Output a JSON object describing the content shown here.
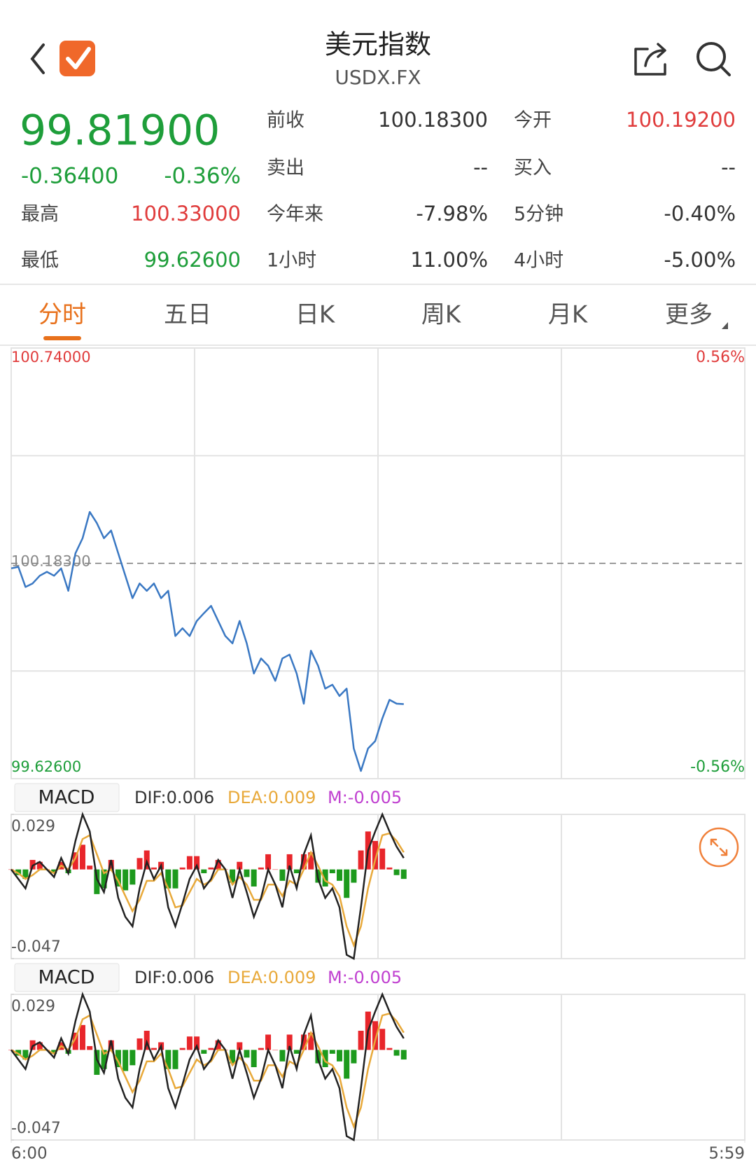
{
  "header": {
    "title": "美元指数",
    "symbol": "USDX.FX"
  },
  "quote": {
    "price": "99.81900",
    "change": "-0.36400",
    "change_pct": "-0.36%",
    "color": "#1e9e3a",
    "stats": [
      [
        {
          "label": "前收",
          "value": "100.18300"
        },
        {
          "label": "今开",
          "value": "100.19200",
          "color": "#e03c3c"
        }
      ],
      [
        {
          "label": "卖出",
          "value": "--"
        },
        {
          "label": "买入",
          "value": "--"
        }
      ],
      [
        {
          "label": "最高",
          "value": "100.33000",
          "color": "#e03c3c"
        },
        {
          "label": "今年来",
          "value": "-7.98%"
        },
        {
          "label": "5分钟",
          "value": "-0.40%"
        }
      ],
      [
        {
          "label": "最低",
          "value": "99.62600",
          "color": "#1e9e3a"
        },
        {
          "label": "1小时",
          "value": "11.00%"
        },
        {
          "label": "4小时",
          "value": "-5.00%"
        }
      ]
    ]
  },
  "tabs": {
    "items": [
      "分时",
      "五日",
      "日K",
      "周K",
      "月K",
      "更多"
    ],
    "active": 0
  },
  "chart_data": [
    {
      "type": "line",
      "color": "#3a78c3",
      "x": [
        0,
        14,
        28,
        42,
        56,
        70,
        84,
        98,
        112,
        126,
        140,
        154,
        168,
        182,
        196,
        210,
        224,
        238,
        252,
        266,
        280,
        294,
        308,
        322,
        336,
        350,
        364,
        378,
        392,
        406,
        420,
        434,
        448,
        462,
        476,
        490,
        504,
        518,
        532,
        546,
        560,
        574,
        588,
        602,
        616,
        630,
        644,
        658,
        672,
        686,
        700,
        714,
        728,
        742,
        756,
        770
      ],
      "values": [
        100.17,
        100.174,
        100.122,
        100.131,
        100.151,
        100.161,
        100.151,
        100.17,
        100.112,
        100.209,
        100.248,
        100.316,
        100.287,
        100.248,
        100.268,
        100.209,
        100.151,
        100.093,
        100.131,
        100.112,
        100.131,
        100.093,
        100.112,
        99.995,
        100.015,
        99.995,
        100.034,
        100.054,
        100.073,
        100.034,
        99.995,
        99.976,
        100.034,
        99.976,
        99.898,
        99.937,
        99.918,
        99.879,
        99.937,
        99.947,
        99.898,
        99.82,
        99.957,
        99.918,
        99.859,
        99.869,
        99.84,
        99.859,
        99.704,
        99.646,
        99.704,
        99.723,
        99.782,
        99.83,
        99.82,
        99.819
      ],
      "xlim": [
        0,
        1439
      ],
      "xticks": [
        {
          "value": 0,
          "label": "6:00"
        },
        {
          "value": 1439,
          "label": "5:59"
        }
      ],
      "ylim": [
        99.626,
        100.74
      ],
      "yticks": [
        {
          "value": 99.626,
          "label": "99.62600"
        },
        {
          "value": 100.74,
          "label": "100.74000"
        }
      ],
      "y2lim": [
        -0.56,
        0.56
      ],
      "y2ticks": [
        {
          "value": -0.56,
          "label": "-0.56%"
        },
        {
          "value": 0.56,
          "label": "0.56%"
        }
      ],
      "reference": {
        "value": 100.183,
        "label": "100.18300"
      },
      "up_color": "#e03c3c",
      "down_color": "#1e9e3a"
    },
    {
      "type": "macd",
      "title": "MACD",
      "dif_label": "DIF:0.006",
      "dea_label": "DEA:0.009",
      "m_label": "M:-0.005",
      "ylim": [
        -0.047,
        0.029
      ],
      "yticks": [
        -0.047,
        0.029
      ],
      "dif": {
        "color": "#222222",
        "values": [
          0.0,
          -0.005,
          -0.01,
          0.002,
          0.004,
          0.0,
          -0.004,
          0.006,
          -0.002,
          0.015,
          0.029,
          0.02,
          -0.005,
          -0.012,
          0.005,
          -0.015,
          -0.025,
          -0.03,
          -0.01,
          0.004,
          -0.005,
          0.002,
          -0.02,
          -0.03,
          -0.018,
          -0.005,
          0.002,
          -0.01,
          -0.005,
          0.005,
          0.0,
          -0.015,
          0.0,
          -0.012,
          -0.025,
          -0.015,
          0.0,
          -0.008,
          -0.02,
          0.002,
          -0.01,
          0.008,
          0.018,
          -0.005,
          -0.015,
          -0.01,
          -0.02,
          -0.045,
          -0.047,
          -0.02,
          0.01,
          0.02,
          0.029,
          0.02,
          0.012,
          0.006
        ]
      },
      "dea": {
        "color": "#e8a93a",
        "values": [
          0.0,
          -0.002,
          -0.005,
          -0.003,
          0.0,
          0.0,
          -0.002,
          0.002,
          0.0,
          0.006,
          0.016,
          0.018,
          0.008,
          -0.002,
          0.0,
          -0.006,
          -0.014,
          -0.022,
          -0.016,
          -0.006,
          -0.006,
          -0.002,
          -0.01,
          -0.02,
          -0.019,
          -0.012,
          -0.005,
          -0.008,
          -0.006,
          0.0,
          0.0,
          -0.008,
          -0.004,
          -0.008,
          -0.016,
          -0.016,
          -0.008,
          -0.008,
          -0.014,
          -0.006,
          -0.008,
          0.0,
          0.009,
          0.002,
          -0.006,
          -0.008,
          -0.014,
          -0.03,
          -0.04,
          -0.03,
          -0.01,
          0.005,
          0.018,
          0.019,
          0.015,
          0.009
        ]
      },
      "m": {
        "color": "#c040d0",
        "up_color": "#e8262b",
        "down_color": "#1d9a1d",
        "values": [
          0,
          -0.003,
          -0.005,
          0.005,
          0.004,
          0,
          -0.002,
          0.004,
          -0.002,
          0.009,
          0.013,
          0.002,
          -0.013,
          -0.01,
          0.005,
          -0.009,
          -0.011,
          -0.008,
          0.006,
          0.01,
          0.001,
          0.004,
          -0.01,
          -0.01,
          0.001,
          0.007,
          0.007,
          -0.002,
          0.001,
          0.005,
          0,
          -0.007,
          0.004,
          -0.004,
          -0.009,
          0.001,
          0.008,
          0,
          -0.006,
          0.008,
          -0.002,
          0.008,
          0.009,
          -0.007,
          -0.009,
          -0.002,
          -0.006,
          -0.015,
          -0.007,
          0.01,
          0.02,
          0.015,
          0.011,
          0.001,
          -0.003,
          -0.005
        ]
      }
    }
  ]
}
